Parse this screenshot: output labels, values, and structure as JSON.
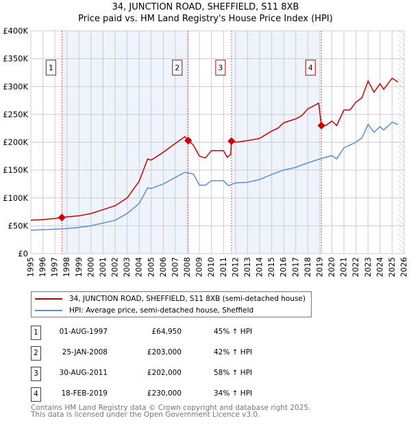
{
  "chart_data": {
    "type": "line",
    "title": "34, JUNCTION ROAD, SHEFFIELD, S11 8XB",
    "subtitle": "Price paid vs. HM Land Registry's House Price Index (HPI)",
    "xlim": [
      1995,
      2026
    ],
    "ylim": [
      0,
      400000
    ],
    "y_ticks": [
      0,
      50000,
      100000,
      150000,
      200000,
      250000,
      300000,
      350000,
      400000
    ],
    "y_tick_labels": [
      "£0",
      "£50K",
      "£100K",
      "£150K",
      "£200K",
      "£250K",
      "£300K",
      "£350K",
      "£400K"
    ],
    "x_ticks": [
      1995,
      1996,
      1997,
      1998,
      1999,
      2000,
      2001,
      2002,
      2003,
      2004,
      2005,
      2006,
      2007,
      2008,
      2009,
      2010,
      2011,
      2012,
      2013,
      2014,
      2015,
      2016,
      2017,
      2018,
      2019,
      2020,
      2021,
      2022,
      2023,
      2024,
      2025,
      2026
    ],
    "grid": true,
    "series": [
      {
        "name": "34, JUNCTION ROAD, SHEFFIELD, S11 8XB (semi-detached house)",
        "color": "#cc0000",
        "x": [
          1995,
          1996,
          1997,
          1997.58,
          1998,
          1999,
          2000,
          2001,
          2002,
          2003,
          2004,
          2004.7,
          2005,
          2006,
          2007,
          2007.8,
          2008.07,
          2008.5,
          2009,
          2009.5,
          2010,
          2011,
          2011.3,
          2011.6,
          2011.66,
          2012,
          2013,
          2014,
          2015,
          2015.5,
          2016,
          2017,
          2017.5,
          2018,
          2018.9,
          2019.13,
          2019.5,
          2020,
          2020.4,
          2021,
          2021.5,
          2022,
          2022.5,
          2023,
          2023.5,
          2024,
          2024.3,
          2025,
          2025.5
        ],
        "y": [
          60000,
          61000,
          63000,
          64950,
          66000,
          68000,
          72000,
          79000,
          86000,
          100000,
          130000,
          170000,
          168000,
          182000,
          198000,
          210000,
          203000,
          195000,
          175000,
          172000,
          185000,
          185000,
          173000,
          178000,
          202000,
          200000,
          203000,
          207000,
          220000,
          225000,
          235000,
          242000,
          248000,
          260000,
          270000,
          230000,
          230000,
          238000,
          230000,
          258000,
          258000,
          272000,
          280000,
          310000,
          290000,
          305000,
          295000,
          315000,
          308000
        ]
      },
      {
        "name": "HPI: Average price, semi-detached house, Sheffield",
        "color": "#5b8dd6",
        "x": [
          1995,
          1996,
          1997,
          1998,
          1999,
          2000,
          2001,
          2002,
          2003,
          2004,
          2004.7,
          2005,
          2006,
          2007,
          2007.8,
          2008.5,
          2009,
          2009.5,
          2010,
          2011,
          2011.4,
          2012,
          2013,
          2014,
          2015,
          2016,
          2017,
          2018,
          2019,
          2020,
          2020.4,
          2021,
          2022,
          2022.5,
          2023,
          2023.5,
          2024,
          2024.3,
          2025,
          2025.5
        ],
        "y": [
          42000,
          43000,
          44000,
          45000,
          47000,
          50000,
          55000,
          60000,
          72000,
          90000,
          118000,
          117000,
          125000,
          137000,
          146000,
          143000,
          123000,
          123000,
          131000,
          131000,
          122000,
          127000,
          128000,
          133000,
          142000,
          150000,
          155000,
          163000,
          170000,
          176000,
          170000,
          190000,
          200000,
          208000,
          232000,
          218000,
          228000,
          222000,
          236000,
          232000
        ]
      }
    ],
    "sales": [
      {
        "label": "1",
        "x": 1997.58,
        "y": 64950
      },
      {
        "label": "2",
        "x": 2008.07,
        "y": 203000
      },
      {
        "label": "3",
        "x": 2011.66,
        "y": 202000
      },
      {
        "label": "4",
        "x": 2019.13,
        "y": 230000
      }
    ],
    "shaded_ranges": [
      [
        1997.58,
        2008.07
      ],
      [
        2011.66,
        2019.13
      ]
    ],
    "hatched_from": 2025.5,
    "legend": "below"
  },
  "legend": {
    "property": "34, JUNCTION ROAD, SHEFFIELD, S11 8XB (semi-detached house)",
    "hpi": "HPI: Average price, semi-detached house, Sheffield"
  },
  "transactions": [
    {
      "num": "1",
      "date": "01-AUG-1997",
      "price": "£64,950",
      "hpi": "45% ↑ HPI"
    },
    {
      "num": "2",
      "date": "25-JAN-2008",
      "price": "£203,000",
      "hpi": "42% ↑ HPI"
    },
    {
      "num": "3",
      "date": "30-AUG-2011",
      "price": "£202,000",
      "hpi": "58% ↑ HPI"
    },
    {
      "num": "4",
      "date": "18-FEB-2019",
      "price": "£230,000",
      "hpi": "34% ↑ HPI"
    }
  ],
  "footer": {
    "line1": "Contains HM Land Registry data © Crown copyright and database right 2025.",
    "line2": "This data is licensed under the Open Government Licence v3.0."
  }
}
